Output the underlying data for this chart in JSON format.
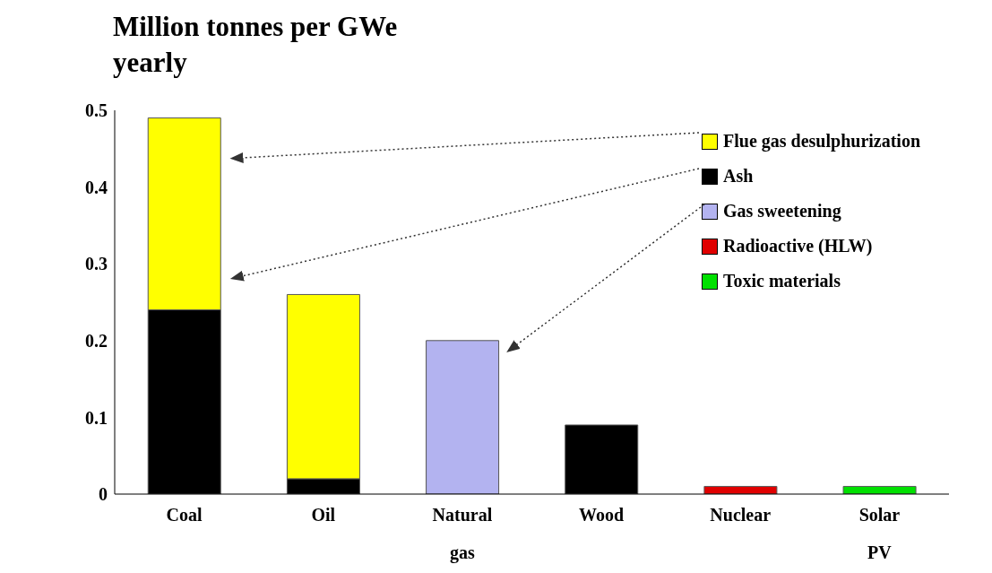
{
  "chart_data": {
    "type": "bar",
    "title": "Million tonnes per GWe  yearly",
    "categories": [
      "Coal",
      "Oil",
      "Natural gas",
      "Wood",
      "Nuclear",
      "Solar PV"
    ],
    "stacked": true,
    "series": [
      {
        "name": "Ash",
        "color": "#000000",
        "values": [
          0.24,
          0.02,
          null,
          0.09,
          null,
          null
        ]
      },
      {
        "name": "Flue gas desulphurization",
        "color": "#ffff00",
        "values": [
          0.25,
          0.24,
          null,
          null,
          null,
          null
        ]
      },
      {
        "name": "Gas sweetening",
        "color": "#b3b3f0",
        "values": [
          null,
          null,
          0.2,
          null,
          null,
          null
        ]
      },
      {
        "name": "Radioactive (HLW)",
        "color": "#e00000",
        "values": [
          null,
          null,
          null,
          null,
          0.01,
          null
        ]
      },
      {
        "name": "Toxic materials",
        "color": "#00e000",
        "values": [
          null,
          null,
          null,
          null,
          null,
          0.01
        ]
      }
    ],
    "ylim": [
      0,
      0.5
    ],
    "yticks": [
      0,
      0.1,
      0.2,
      0.3,
      0.4,
      0.5
    ],
    "grid": false,
    "legend": "top right"
  }
}
